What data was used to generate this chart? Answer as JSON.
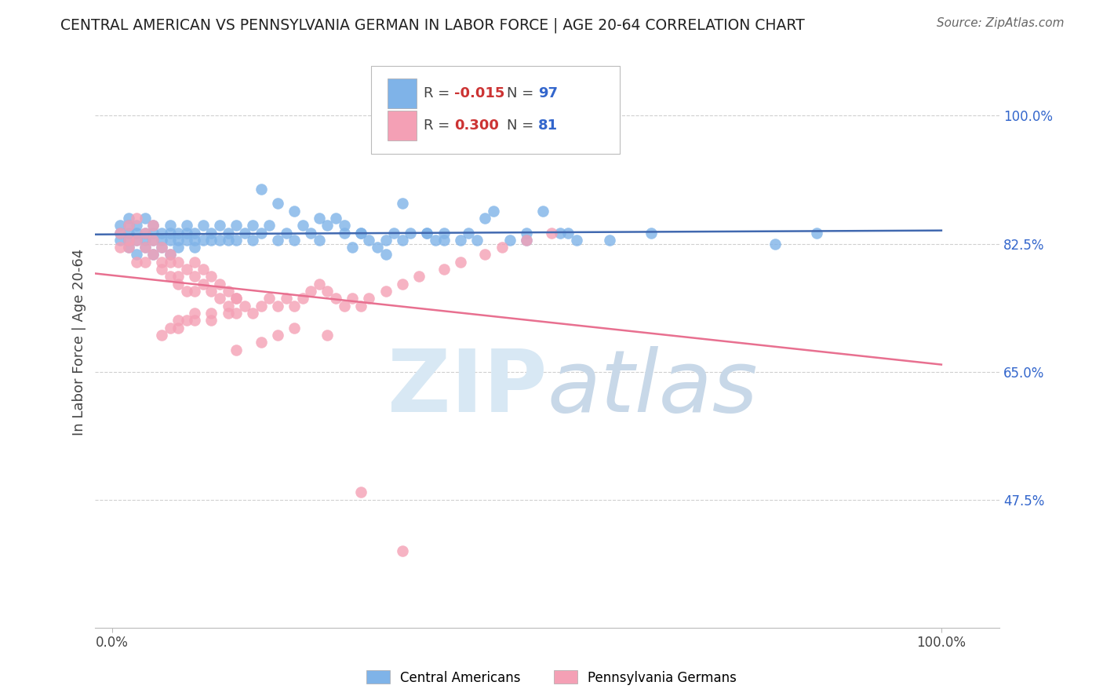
{
  "title": "CENTRAL AMERICAN VS PENNSYLVANIA GERMAN IN LABOR FORCE | AGE 20-64 CORRELATION CHART",
  "source": "Source: ZipAtlas.com",
  "ylabel": "In Labor Force | Age 20-64",
  "blue_label": "Central Americans",
  "pink_label": "Pennsylvania Germans",
  "blue_R": "-0.015",
  "blue_N": "97",
  "pink_R": "0.300",
  "pink_N": "81",
  "yticks": [
    0.475,
    0.65,
    0.825,
    1.0
  ],
  "ytick_labels": [
    "47.5%",
    "65.0%",
    "82.5%",
    "100.0%"
  ],
  "xlim": [
    -0.02,
    1.07
  ],
  "ylim": [
    0.3,
    1.08
  ],
  "blue_color": "#7fb3e8",
  "pink_color": "#f4a0b5",
  "blue_line_color": "#4169b0",
  "pink_line_color": "#e87090",
  "watermark": "ZIPatlas",
  "watermark_color": "#c8d8e8",
  "background": "#ffffff",
  "grid_color": "#d0d0d0",
  "blue_x": [
    0.01,
    0.01,
    0.01,
    0.02,
    0.02,
    0.02,
    0.02,
    0.02,
    0.03,
    0.03,
    0.03,
    0.03,
    0.04,
    0.04,
    0.04,
    0.04,
    0.05,
    0.05,
    0.05,
    0.05,
    0.06,
    0.06,
    0.06,
    0.07,
    0.07,
    0.07,
    0.07,
    0.08,
    0.08,
    0.08,
    0.09,
    0.09,
    0.09,
    0.1,
    0.1,
    0.1,
    0.11,
    0.11,
    0.12,
    0.12,
    0.13,
    0.13,
    0.14,
    0.14,
    0.15,
    0.15,
    0.16,
    0.17,
    0.17,
    0.18,
    0.19,
    0.2,
    0.21,
    0.22,
    0.23,
    0.24,
    0.25,
    0.26,
    0.27,
    0.28,
    0.29,
    0.3,
    0.31,
    0.32,
    0.33,
    0.34,
    0.35,
    0.36,
    0.38,
    0.39,
    0.4,
    0.42,
    0.44,
    0.46,
    0.48,
    0.5,
    0.52,
    0.54,
    0.56,
    0.8,
    0.85,
    0.18,
    0.2,
    0.22,
    0.25,
    0.28,
    0.3,
    0.33,
    0.35,
    0.38,
    0.4,
    0.43,
    0.45,
    0.5,
    0.55,
    0.6,
    0.65
  ],
  "blue_y": [
    0.84,
    0.83,
    0.85,
    0.82,
    0.84,
    0.86,
    0.83,
    0.85,
    0.81,
    0.83,
    0.85,
    0.84,
    0.82,
    0.84,
    0.86,
    0.83,
    0.81,
    0.83,
    0.85,
    0.84,
    0.82,
    0.84,
    0.83,
    0.81,
    0.83,
    0.85,
    0.84,
    0.82,
    0.84,
    0.83,
    0.83,
    0.85,
    0.84,
    0.82,
    0.84,
    0.83,
    0.83,
    0.85,
    0.84,
    0.83,
    0.83,
    0.85,
    0.84,
    0.83,
    0.83,
    0.85,
    0.84,
    0.85,
    0.83,
    0.84,
    0.85,
    0.83,
    0.84,
    0.83,
    0.85,
    0.84,
    0.83,
    0.85,
    0.86,
    0.84,
    0.82,
    0.84,
    0.83,
    0.82,
    0.81,
    0.84,
    0.83,
    0.84,
    0.84,
    0.83,
    0.84,
    0.83,
    0.83,
    0.87,
    0.83,
    0.84,
    0.87,
    0.84,
    0.83,
    0.825,
    0.84,
    0.9,
    0.88,
    0.87,
    0.86,
    0.85,
    0.84,
    0.83,
    0.88,
    0.84,
    0.83,
    0.84,
    0.86,
    0.83,
    0.84,
    0.83,
    0.84
  ],
  "pink_x": [
    0.01,
    0.01,
    0.02,
    0.02,
    0.02,
    0.03,
    0.03,
    0.03,
    0.04,
    0.04,
    0.04,
    0.05,
    0.05,
    0.05,
    0.06,
    0.06,
    0.06,
    0.07,
    0.07,
    0.07,
    0.08,
    0.08,
    0.08,
    0.09,
    0.09,
    0.1,
    0.1,
    0.1,
    0.11,
    0.11,
    0.12,
    0.12,
    0.13,
    0.13,
    0.14,
    0.14,
    0.15,
    0.15,
    0.16,
    0.17,
    0.18,
    0.19,
    0.2,
    0.21,
    0.22,
    0.23,
    0.24,
    0.25,
    0.26,
    0.27,
    0.28,
    0.29,
    0.3,
    0.31,
    0.33,
    0.35,
    0.37,
    0.4,
    0.42,
    0.45,
    0.47,
    0.5,
    0.53,
    0.26,
    0.15,
    0.18,
    0.2,
    0.22,
    0.12,
    0.14,
    0.08,
    0.1,
    0.07,
    0.09,
    0.06,
    0.08,
    0.1,
    0.12,
    0.15,
    0.3,
    0.35
  ],
  "pink_y": [
    0.84,
    0.82,
    0.82,
    0.85,
    0.83,
    0.8,
    0.83,
    0.86,
    0.8,
    0.82,
    0.84,
    0.81,
    0.83,
    0.85,
    0.8,
    0.82,
    0.79,
    0.81,
    0.78,
    0.8,
    0.78,
    0.8,
    0.77,
    0.76,
    0.79,
    0.76,
    0.78,
    0.8,
    0.77,
    0.79,
    0.76,
    0.78,
    0.75,
    0.77,
    0.74,
    0.76,
    0.73,
    0.75,
    0.74,
    0.73,
    0.74,
    0.75,
    0.74,
    0.75,
    0.74,
    0.75,
    0.76,
    0.77,
    0.76,
    0.75,
    0.74,
    0.75,
    0.74,
    0.75,
    0.76,
    0.77,
    0.78,
    0.79,
    0.8,
    0.81,
    0.82,
    0.83,
    0.84,
    0.7,
    0.68,
    0.69,
    0.7,
    0.71,
    0.72,
    0.73,
    0.72,
    0.73,
    0.71,
    0.72,
    0.7,
    0.71,
    0.72,
    0.73,
    0.75,
    0.485,
    0.405
  ]
}
